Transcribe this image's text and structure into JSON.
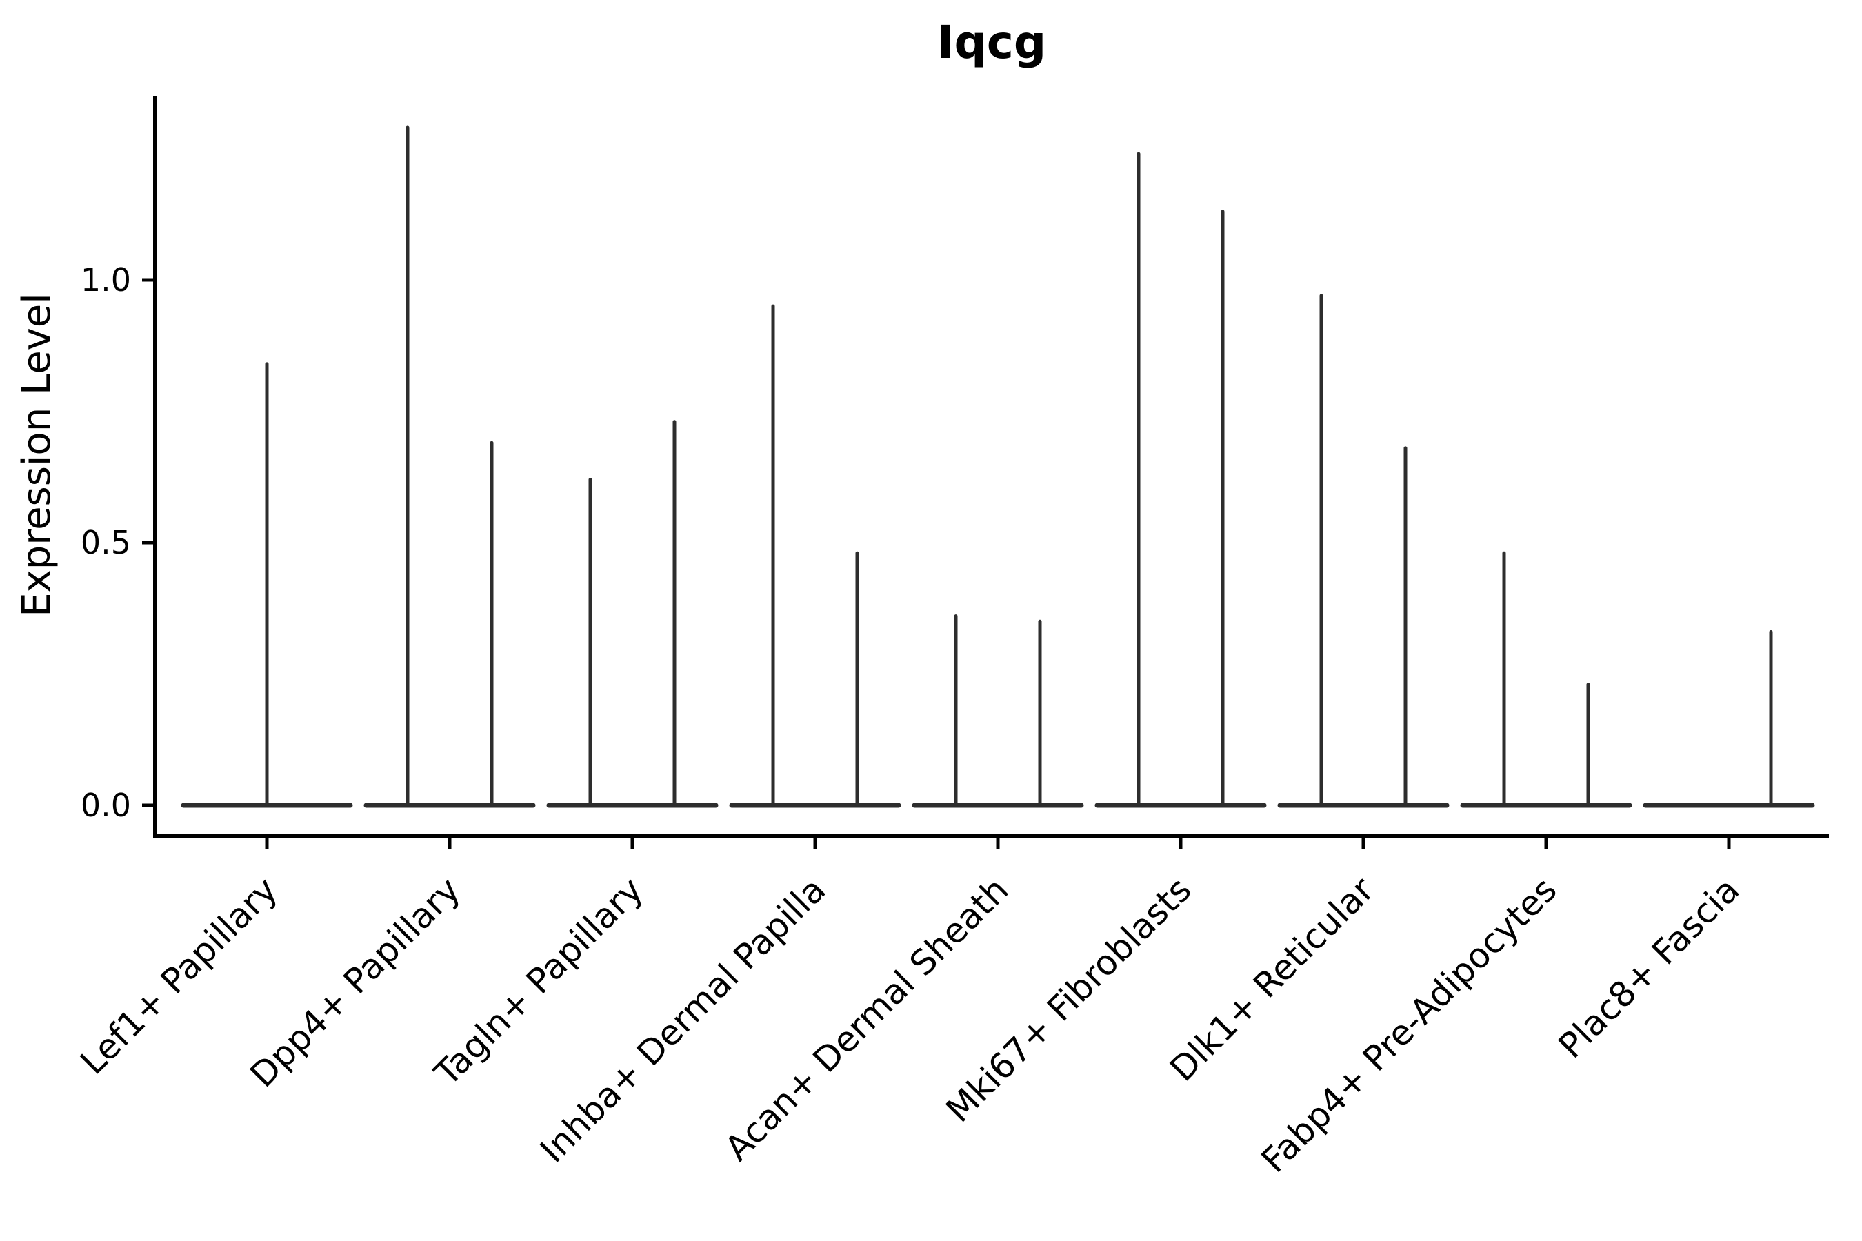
{
  "chart_data": {
    "type": "violin",
    "title": "Iqcg",
    "xlabel": "",
    "ylabel": "Expression Level",
    "ylim": [
      -0.06,
      1.36
    ],
    "yticks": [
      {
        "value": 0.0,
        "label": "0.0"
      },
      {
        "value": 0.5,
        "label": "0.5"
      },
      {
        "value": 1.0,
        "label": "1.0"
      }
    ],
    "grid": false,
    "legend": "none",
    "baseline_value": 0.0,
    "violin_style": "flat density body at 0 with thin vertical spike up to the maximum expression value",
    "categories": [
      "Lef1+ Papillary",
      "Dpp4+ Papillary",
      "Tagln+ Papillary",
      "Inhba+ Dermal Papilla",
      "Acan+ Dermal Sheath",
      "Mki67+ Fibroblasts",
      "Dlk1+ Reticular",
      "Fabp4+ Pre-Adipocytes",
      "Plac8+ Fascia"
    ],
    "violins": [
      {
        "category": "Lef1+ Papillary",
        "spikes": [
          {
            "position": "center",
            "max": 0.84
          }
        ]
      },
      {
        "category": "Dpp4+ Papillary",
        "spikes": [
          {
            "position": "left",
            "max": 1.29
          },
          {
            "position": "right",
            "max": 0.69
          }
        ]
      },
      {
        "category": "Tagln+ Papillary",
        "spikes": [
          {
            "position": "left",
            "max": 0.62
          },
          {
            "position": "right",
            "max": 0.73
          }
        ]
      },
      {
        "category": "Inhba+ Dermal Papilla",
        "spikes": [
          {
            "position": "left",
            "max": 0.95
          },
          {
            "position": "right",
            "max": 0.48
          }
        ]
      },
      {
        "category": "Acan+ Dermal Sheath",
        "spikes": [
          {
            "position": "left",
            "max": 0.36
          },
          {
            "position": "right",
            "max": 0.35
          }
        ]
      },
      {
        "category": "Mki67+ Fibroblasts",
        "spikes": [
          {
            "position": "left",
            "max": 1.24
          },
          {
            "position": "right",
            "max": 1.13
          }
        ]
      },
      {
        "category": "Dlk1+ Reticular",
        "spikes": [
          {
            "position": "left",
            "max": 0.97
          },
          {
            "position": "right",
            "max": 0.68
          }
        ]
      },
      {
        "category": "Fabp4+ Pre-Adipocytes",
        "spikes": [
          {
            "position": "left",
            "max": 0.48
          },
          {
            "position": "right",
            "max": 0.23
          }
        ]
      },
      {
        "category": "Plac8+ Fascia",
        "spikes": [
          {
            "position": "left",
            "max": 0.0
          },
          {
            "position": "right",
            "max": 0.33
          }
        ]
      }
    ],
    "colors": {
      "violin": "#2d2d2d",
      "axis": "#000000",
      "text": "#000000",
      "background": "#ffffff"
    }
  }
}
